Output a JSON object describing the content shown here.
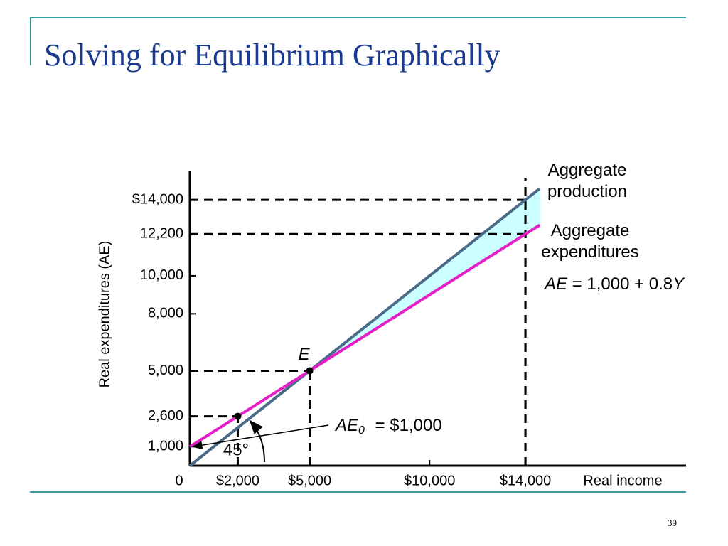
{
  "page_number": "39",
  "chart_data": {
    "type": "line",
    "title": "Solving for Equilibrium Graphically",
    "x_label": "Real income",
    "y_label": "Real expenditures (AE)",
    "origin_label": "0",
    "xlim": [
      0,
      20700
    ],
    "ylim": [
      0,
      15540
    ],
    "xticks": [
      {
        "value": 2000,
        "label": "$2,000"
      },
      {
        "value": 5000,
        "label": "$5,000"
      },
      {
        "value": 10000,
        "label": "$10,000"
      },
      {
        "value": 14000,
        "label": "$14,000"
      }
    ],
    "yticks": [
      {
        "value": 1000,
        "label": "1,000"
      },
      {
        "value": 2600,
        "label": "2,600"
      },
      {
        "value": 5000,
        "label": "5,000"
      },
      {
        "value": 8000,
        "label": "8,000"
      },
      {
        "value": 10000,
        "label": "10,000"
      },
      {
        "value": 12200,
        "label": "12,200"
      },
      {
        "value": 14000,
        "label": "$14,000"
      }
    ],
    "series": [
      {
        "name": "Aggregate production",
        "color": "#4a6a88",
        "x": [
          0,
          14600
        ],
        "values": [
          0,
          14600
        ]
      },
      {
        "name": "Aggregate expenditures",
        "color": "#e61ec8",
        "x": [
          0,
          14600
        ],
        "values": [
          1000,
          12680
        ]
      }
    ],
    "shade_color": "#ccffff",
    "points": [
      {
        "label": "E",
        "x": 5000,
        "y": 5000
      },
      {
        "x": 2000,
        "y": 2600
      }
    ],
    "dashed_guides": [
      {
        "x": 14000,
        "y": 14000
      },
      {
        "x": 14000,
        "y": 12200
      },
      {
        "x": 5000,
        "y": 5000
      },
      {
        "x": 2000,
        "y": 2600
      }
    ],
    "equation": [
      "AE",
      " = 1,000 + 0.8",
      "Y"
    ],
    "intercept_note": [
      "AE",
      "0",
      " = $1,000"
    ],
    "angle_label": "45°"
  }
}
